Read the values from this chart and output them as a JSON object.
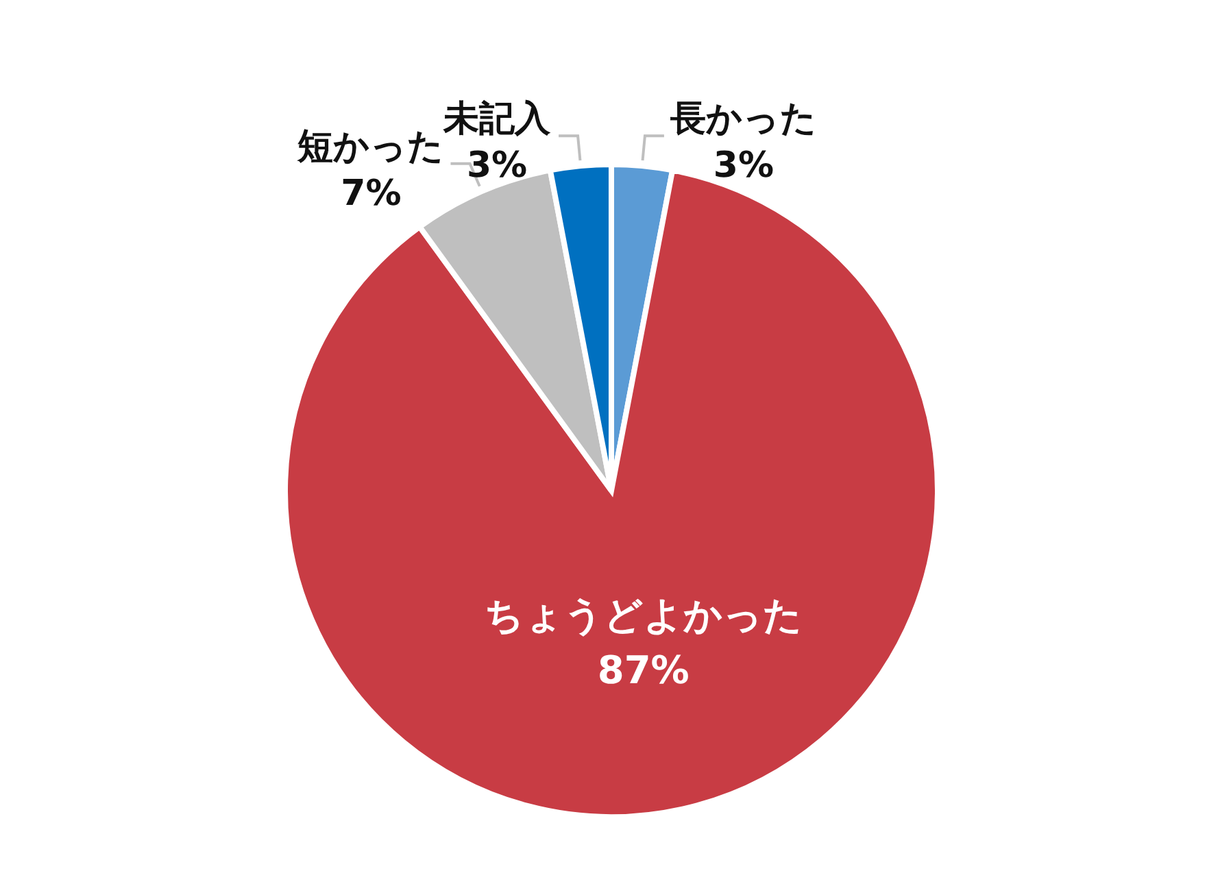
{
  "chart_data": {
    "type": "pie",
    "categories": [
      "長かった",
      "ちょうどよかった",
      "短かった",
      "未記入"
    ],
    "values": [
      3,
      87,
      7,
      3
    ],
    "value_labels": [
      "3%",
      "87%",
      "7%",
      "3%"
    ],
    "colors": [
      "#5b9bd5",
      "#c83c44",
      "#bfbfbf",
      "#0070c0"
    ],
    "legend": false
  }
}
